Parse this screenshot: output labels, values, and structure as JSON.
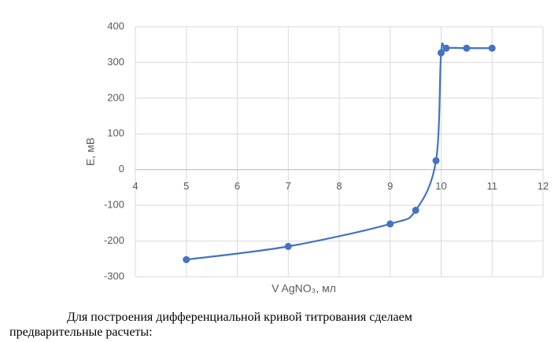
{
  "chart_data": {
    "type": "line",
    "x": [
      5,
      7,
      9,
      9.5,
      9.9,
      10,
      10.1,
      10.5,
      11
    ],
    "series": [
      {
        "color": "#4472c4",
        "values": [
          -252,
          -215,
          -152,
          -114,
          25,
          327,
          340,
          340,
          340
        ]
      }
    ],
    "xlim": [
      4,
      12
    ],
    "xticks": [
      4,
      5,
      6,
      7,
      8,
      9,
      10,
      11,
      12
    ],
    "ylim": [
      -300,
      400
    ],
    "yticks": [
      -300,
      -200,
      -100,
      0,
      100,
      200,
      300,
      400
    ],
    "x_label": "V AgNO₃, мл",
    "y_label": "E, мВ",
    "grid": true,
    "smooth": true
  },
  "paragraph": "Для построения дифференциальной кривой титрования сделаем предварительные расчеты:"
}
